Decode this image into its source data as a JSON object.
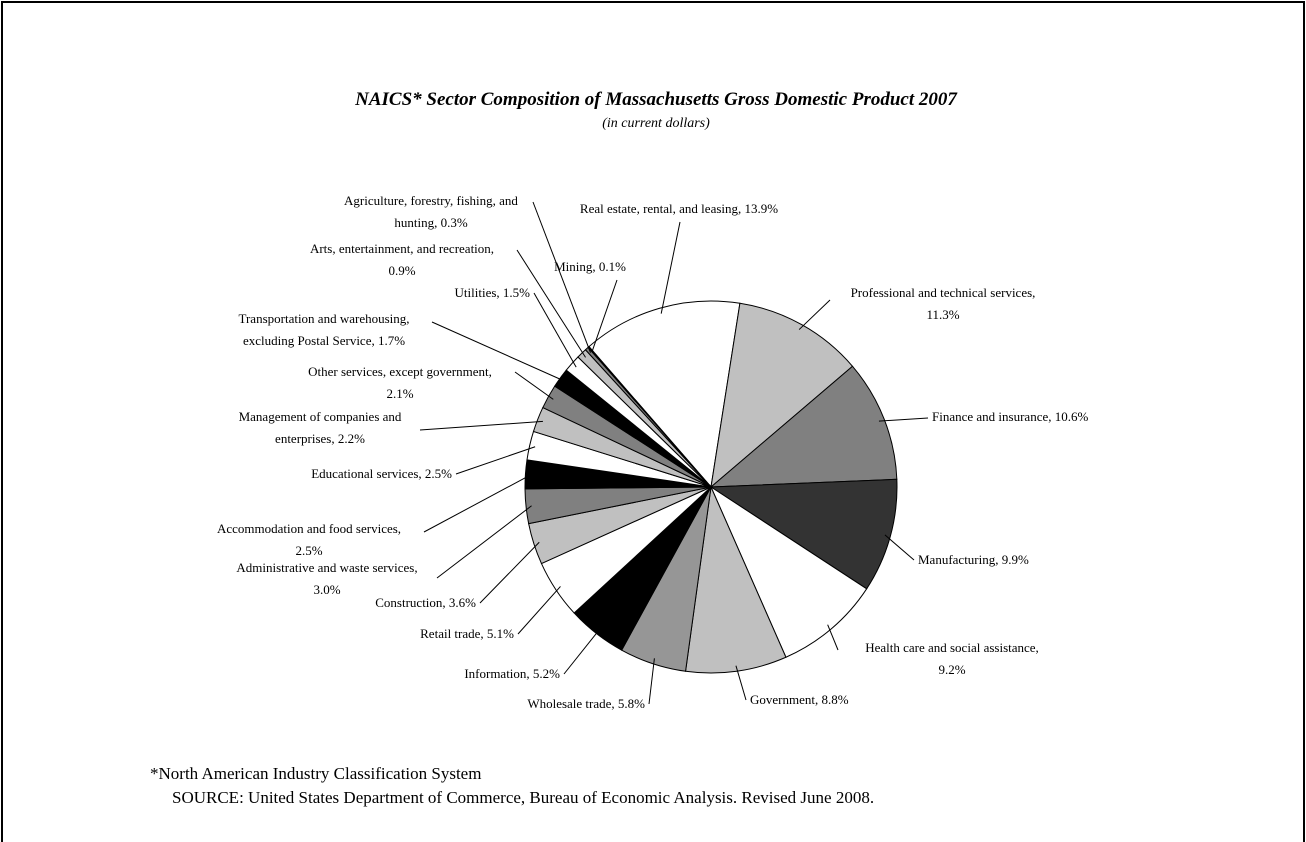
{
  "chart_data": {
    "type": "pie",
    "title": "NAICS* Sector Composition of Massachusetts Gross Domestic Product 2007",
    "subtitle": "(in current dollars)",
    "values": [
      13.9,
      11.3,
      10.6,
      9.9,
      9.2,
      8.8,
      5.8,
      5.2,
      5.1,
      3.6,
      3.0,
      2.5,
      2.5,
      2.2,
      2.1,
      1.7,
      1.5,
      0.9,
      0.3,
      0.1
    ],
    "value_labels": [
      [
        "Real estate, rental, and leasing, 13.9%"
      ],
      [
        "Professional and technical services,",
        "11.3%"
      ],
      [
        "Finance and insurance, 10.6%"
      ],
      [
        "Manufacturing, 9.9%"
      ],
      [
        "Health care and social assistance,",
        "9.2%"
      ],
      [
        "Government, 8.8%"
      ],
      [
        "Wholesale trade, 5.8%"
      ],
      [
        "Information, 5.2%"
      ],
      [
        "Retail trade, 5.1%"
      ],
      [
        "Construction, 3.6%"
      ],
      [
        "Administrative and waste services,",
        "3.0%"
      ],
      [
        "Accommodation and food services,",
        "2.5%"
      ],
      [
        "Educational services, 2.5%"
      ],
      [
        "Management of companies and",
        "enterprises, 2.2%"
      ],
      [
        "Other services, except government,",
        "2.1%"
      ],
      [
        "Transportation and warehousing,",
        "excluding Postal Service, 1.7%"
      ],
      [
        "Utilities, 1.5%"
      ],
      [
        "Arts, entertainment, and recreation,",
        "0.9%"
      ],
      [
        "Agriculture, forestry, fishing, and",
        "hunting, 0.3%"
      ],
      [
        "Mining, 0.1%"
      ]
    ],
    "colors": [
      "#ffffff",
      "#c0c0c0",
      "#808080",
      "#333333",
      "#ffffff",
      "#c0c0c0",
      "#969696",
      "#000000",
      "#ffffff",
      "#c0c0c0",
      "#808080",
      "#000000",
      "#ffffff",
      "#c0c0c0",
      "#808080",
      "#000000",
      "#ffffff",
      "#c0c0c0",
      "#808080",
      "#000000"
    ],
    "footnotes": [
      "*North American Industry Classification System",
      "SOURCE:  United States Department of Commerce, Bureau of Economic Analysis.  Revised June 2008."
    ]
  }
}
